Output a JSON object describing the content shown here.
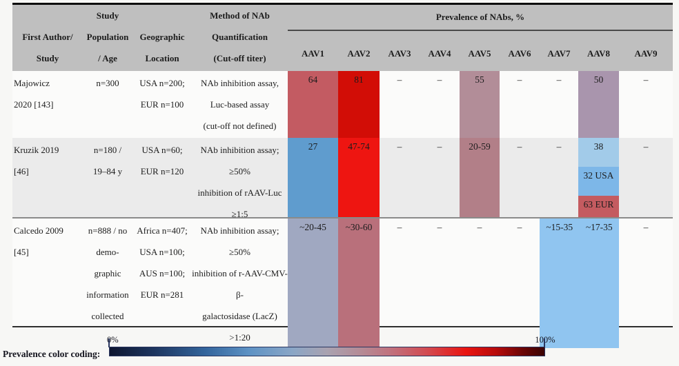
{
  "header": {
    "author": "First Author/\nStudy",
    "population": "Study\nPopulation\n/ Age",
    "location": "Geographic\nLocation",
    "method": "Method of NAb\nQuantification\n(Cut-off titer)",
    "prevalence_title": "Prevalence of NAbs, %",
    "serotypes": [
      "AAV1",
      "AAV2",
      "AAV3",
      "AAV4",
      "AAV5",
      "AAV6",
      "AAV7",
      "AAV8",
      "AAV9"
    ]
  },
  "rows": [
    {
      "author": "Majowicz\n2020 [143]",
      "population": "n=300",
      "location": "USA n=200;\nEUR n=100",
      "method": "NAb inhibition assay,\nLuc-based assay\n(cut-off not defined)",
      "values": {
        "aav1": {
          "text": "64",
          "bg": "#c35b62"
        },
        "aav2": {
          "text": "81",
          "bg": "#d20d06"
        },
        "aav3": {
          "text": "–",
          "bg": ""
        },
        "aav4": {
          "text": "–",
          "bg": ""
        },
        "aav5": {
          "text": "55",
          "bg": "#b28d98"
        },
        "aav6": {
          "text": "–",
          "bg": ""
        },
        "aav7": {
          "text": "–",
          "bg": ""
        },
        "aav8": {
          "text": "50",
          "bg": "#a995ad"
        },
        "aav9": {
          "text": "–",
          "bg": ""
        }
      }
    },
    {
      "author": "Kruzik 2019\n[46]",
      "population": "n=180 /\n19–84 y",
      "location": "USA n=60;\nEUR n=120",
      "method": "NAb inhibition assay; ≥50%\ninhibition of rAAV-Luc ≥1:5",
      "values": {
        "aav1": {
          "text": "27",
          "bg": "#5f9cce"
        },
        "aav2": {
          "text": "47-74",
          "bg": "#ee1511"
        },
        "aav3": {
          "text": "–",
          "bg": ""
        },
        "aav4": {
          "text": "–",
          "bg": ""
        },
        "aav5": {
          "text": "20-59",
          "bg": "#b27f88"
        },
        "aav6": {
          "text": "–",
          "bg": ""
        },
        "aav7": {
          "text": "–",
          "bg": ""
        },
        "aav8": {
          "parts": [
            {
              "text": "38",
              "bg": "#a2cbe9"
            },
            {
              "text": "32 USA",
              "bg": "#7db7e8"
            },
            {
              "text": "63 EUR",
              "bg": "#c45b60"
            }
          ]
        },
        "aav9": {
          "text": "–",
          "bg": ""
        }
      }
    },
    {
      "author": "Calcedo 2009\n[45]",
      "population": "n=888 / no\ndemo-\ngraphic\ninformation\ncollected",
      "location": "Africa n=407;\nUSA n=100;\nAUS n=100;\nEUR n=281",
      "method": "NAb inhibition assay; ≥50%\ninhibition of r-AAV-CMV-β-\ngalactosidase (LacZ) >1:20",
      "values": {
        "aav1": {
          "text": "~20-45",
          "bg": "#a0a8c1"
        },
        "aav2": {
          "text": "~30-60",
          "bg": "#b9707b"
        },
        "aav3": {
          "text": "–",
          "bg": ""
        },
        "aav4": {
          "text": "–",
          "bg": ""
        },
        "aav5": {
          "text": "–",
          "bg": ""
        },
        "aav6": {
          "text": "–",
          "bg": ""
        },
        "aav7_8": {
          "left": "~15-35",
          "right": "~17-35",
          "bg": "#90c5f0"
        },
        "aav9": {
          "text": "–",
          "bg": ""
        }
      }
    }
  ],
  "legend": {
    "label": "Prevalence color coding:",
    "min_label": "0%",
    "max_label": "100%",
    "gradient_stops": [
      "#0e1630 0%",
      "#1d355e 10%",
      "#33659c 22%",
      "#5d92c4 32%",
      "#8aa6c6 42%",
      "#a9a2b0 50%",
      "#b58a95 58%",
      "#c1707c 65%",
      "#d24b51 73%",
      "#e91410 82%",
      "#b60b0b 89%",
      "#6b0505 95%",
      "#3a0303 100%"
    ]
  }
}
